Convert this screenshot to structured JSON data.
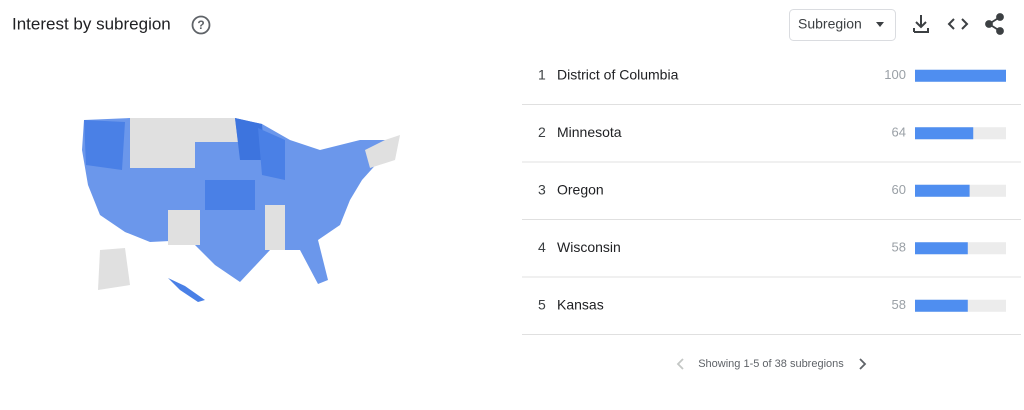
{
  "header": {
    "title": "Interest by subregion",
    "dropdown": "Subregion"
  },
  "table": {
    "rows": [
      {
        "rank": 1,
        "name": "District of Columbia",
        "value": 100
      },
      {
        "rank": 2,
        "name": "Minnesota",
        "value": 64
      },
      {
        "rank": 3,
        "name": "Oregon",
        "value": 60
      },
      {
        "rank": 4,
        "name": "Wisconsin",
        "value": 58
      },
      {
        "rank": 5,
        "name": "Kansas",
        "value": 58
      }
    ]
  },
  "pagination": "Showing 1-5 of 38 subregions"
}
